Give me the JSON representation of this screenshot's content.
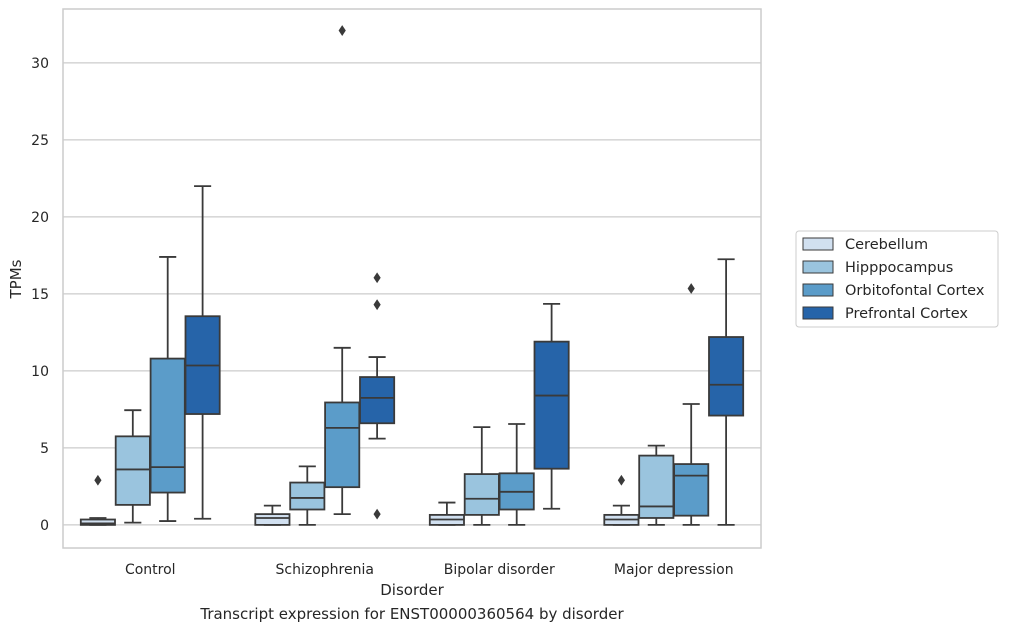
{
  "caption": "Transcript expression for ENST00000360564 by disorder",
  "chart_data": {
    "type": "box",
    "title": "",
    "xlabel": "Disorder",
    "ylabel": "TPMs",
    "ylim": [
      -1.5,
      33.5
    ],
    "yticks": [
      0,
      5,
      10,
      15,
      20,
      25,
      30
    ],
    "grid": "horizontal",
    "legend_position": "right",
    "categories": [
      "Control",
      "Schizophrenia",
      "Bipolar disorder",
      "Major depression"
    ],
    "series": [
      {
        "name": "Cerebellum",
        "color": "#d1e0f0",
        "boxes": [
          {
            "whisker_low": 0.0,
            "q1": 0.0,
            "median": 0.1,
            "q3": 0.35,
            "whisker_high": 0.45,
            "outliers": [
              2.9
            ]
          },
          {
            "whisker_low": 0.0,
            "q1": 0.0,
            "median": 0.45,
            "q3": 0.7,
            "whisker_high": 1.25,
            "outliers": []
          },
          {
            "whisker_low": 0.0,
            "q1": 0.0,
            "median": 0.35,
            "q3": 0.65,
            "whisker_high": 1.45,
            "outliers": []
          },
          {
            "whisker_low": 0.0,
            "q1": 0.0,
            "median": 0.35,
            "q3": 0.65,
            "whisker_high": 1.25,
            "outliers": [
              2.9
            ]
          }
        ]
      },
      {
        "name": "Hipppocampus",
        "color": "#9ac4de",
        "boxes": [
          {
            "whisker_low": 0.15,
            "q1": 1.3,
            "median": 3.6,
            "q3": 5.75,
            "whisker_high": 7.45,
            "outliers": []
          },
          {
            "whisker_low": 0.0,
            "q1": 1.0,
            "median": 1.75,
            "q3": 2.75,
            "whisker_high": 3.8,
            "outliers": []
          },
          {
            "whisker_low": 0.0,
            "q1": 0.65,
            "median": 1.7,
            "q3": 3.3,
            "whisker_high": 6.35,
            "outliers": []
          },
          {
            "whisker_low": 0.0,
            "q1": 0.45,
            "median": 1.2,
            "q3": 4.5,
            "whisker_high": 5.15,
            "outliers": []
          }
        ]
      },
      {
        "name": "Orbitofontal Cortex",
        "color": "#5b9cc9",
        "boxes": [
          {
            "whisker_low": 0.25,
            "q1": 2.1,
            "median": 3.75,
            "q3": 10.8,
            "whisker_high": 17.4,
            "outliers": []
          },
          {
            "whisker_low": 0.7,
            "q1": 2.45,
            "median": 6.3,
            "q3": 7.95,
            "whisker_high": 11.5,
            "outliers": [
              32.1
            ]
          },
          {
            "whisker_low": 0.0,
            "q1": 1.0,
            "median": 2.15,
            "q3": 3.35,
            "whisker_high": 6.55,
            "outliers": []
          },
          {
            "whisker_low": 0.0,
            "q1": 0.6,
            "median": 3.2,
            "q3": 3.95,
            "whisker_high": 7.85,
            "outliers": [
              15.35
            ]
          }
        ]
      },
      {
        "name": "Prefrontal Cortex",
        "color": "#2664a9",
        "boxes": [
          {
            "whisker_low": 0.4,
            "q1": 7.2,
            "median": 10.35,
            "q3": 13.55,
            "whisker_high": 22.0,
            "outliers": []
          },
          {
            "whisker_low": 5.6,
            "q1": 6.6,
            "median": 8.25,
            "q3": 9.6,
            "whisker_high": 10.9,
            "outliers": [
              16.05,
              14.3,
              0.7
            ]
          },
          {
            "whisker_low": 1.05,
            "q1": 3.65,
            "median": 8.4,
            "q3": 11.9,
            "whisker_high": 14.35,
            "outliers": []
          },
          {
            "whisker_low": 0.0,
            "q1": 7.1,
            "median": 9.1,
            "q3": 12.2,
            "whisker_high": 17.25,
            "outliers": []
          }
        ]
      }
    ]
  }
}
